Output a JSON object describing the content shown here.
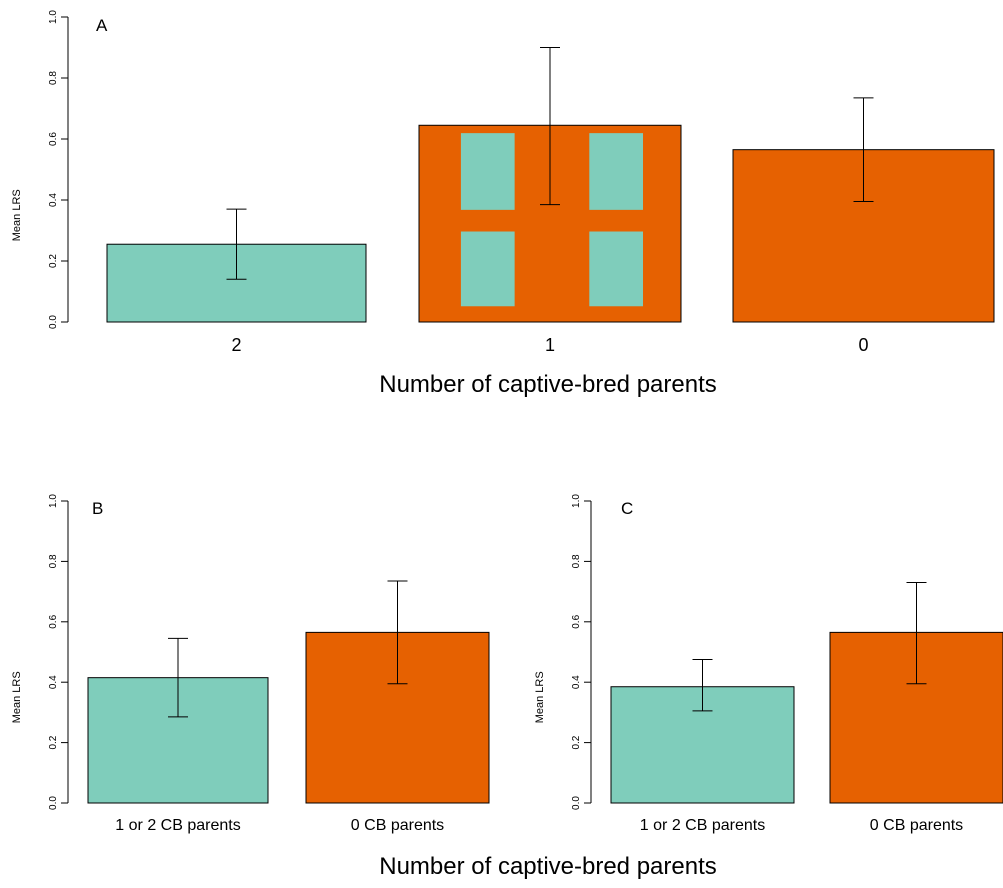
{
  "colors": {
    "teal": "#7fcdbb",
    "orange": "#e66101",
    "axis": "#000000"
  },
  "chart_data": [
    {
      "type": "bar",
      "panel_label": "A",
      "ylabel": "Mean LRS",
      "xlabel": "Number of captive-bred parents",
      "ylim": [
        0,
        1
      ],
      "yticks": [
        "0.0",
        "0.2",
        "0.4",
        "0.6",
        "0.8",
        "1.0"
      ],
      "categories": [
        "2",
        "1",
        "0"
      ],
      "values": [
        0.255,
        0.645,
        0.565
      ],
      "error_low": [
        0.14,
        0.385,
        0.395
      ],
      "error_high": [
        0.37,
        0.9,
        0.735
      ],
      "fills": [
        "teal",
        "mixed",
        "orange"
      ]
    },
    {
      "type": "bar",
      "panel_label": "B",
      "ylabel": "Mean LRS",
      "ylim": [
        0,
        1
      ],
      "yticks": [
        "0.0",
        "0.2",
        "0.4",
        "0.6",
        "0.8",
        "1.0"
      ],
      "categories": [
        "1 or  2 CB parents",
        "0 CB parents"
      ],
      "values": [
        0.415,
        0.565
      ],
      "error_low": [
        0.285,
        0.395
      ],
      "error_high": [
        0.545,
        0.735
      ],
      "fills": [
        "teal",
        "orange"
      ]
    },
    {
      "type": "bar",
      "panel_label": "C",
      "ylabel": "Mean LRS",
      "ylim": [
        0,
        1
      ],
      "yticks": [
        "0.0",
        "0.2",
        "0.4",
        "0.6",
        "0.8",
        "1.0"
      ],
      "categories": [
        "1 or 2 CB parents",
        "0 CB parents"
      ],
      "values": [
        0.385,
        0.565
      ],
      "error_low": [
        0.305,
        0.395
      ],
      "error_high": [
        0.475,
        0.73
      ],
      "fills": [
        "teal",
        "orange"
      ]
    }
  ],
  "shared_xlabel": "Number of captive-bred parents"
}
